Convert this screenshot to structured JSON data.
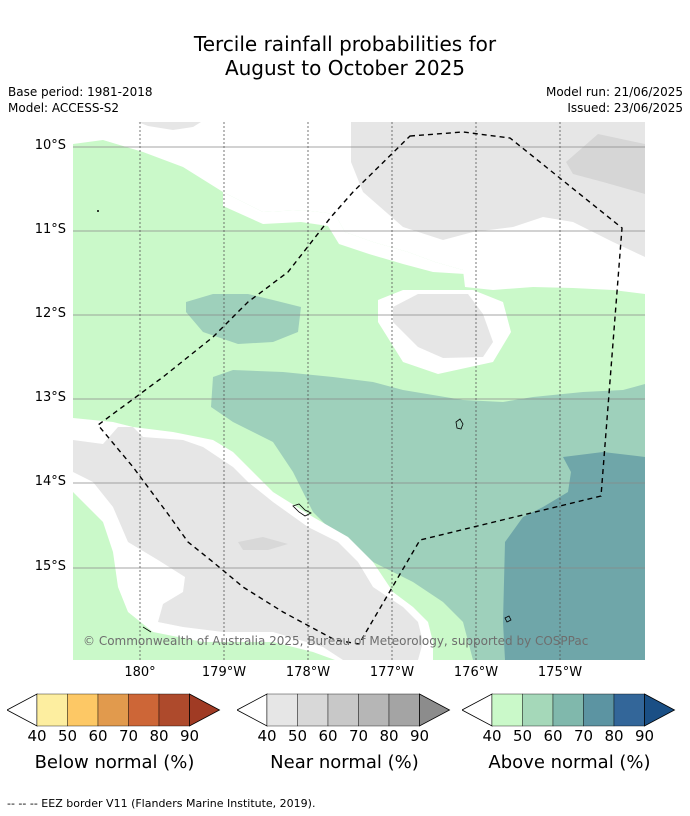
{
  "title_line1": "Tercile rainfall probabilities for",
  "title_line2": "August to October 2025",
  "base_period": "Base period: 1981-2018",
  "model": "Model: ACCESS-S2",
  "model_run": "Model run: 21/06/2025",
  "issued": "Issued: 23/06/2025",
  "lat_labels": [
    "10°S",
    "11°S",
    "12°S",
    "13°S",
    "14°S",
    "15°S"
  ],
  "lon_labels": [
    "180°",
    "179°W",
    "178°W",
    "177°W",
    "176°W",
    "175°W"
  ],
  "copyright": "© Commonwealth of Australia 2025, Bureau of Meteorology, supported by COSPPac",
  "colorbars": [
    {
      "title": "Below normal (%)",
      "ticks": [
        "40",
        "50",
        "60",
        "70",
        "80",
        "90"
      ],
      "colors": [
        "#fdeea0",
        "#fdc865",
        "#e19a4d",
        "#cd6637",
        "#ae4a2c",
        "#a03b24"
      ]
    },
    {
      "title": "Near normal (%)",
      "ticks": [
        "40",
        "50",
        "60",
        "70",
        "80",
        "90"
      ],
      "colors": [
        "#e6e6e6",
        "#d8d8d8",
        "#c8c8c8",
        "#b6b6b6",
        "#a4a4a4",
        "#8c8c8c"
      ]
    },
    {
      "title": "Above normal (%)",
      "ticks": [
        "40",
        "50",
        "60",
        "70",
        "80",
        "90"
      ],
      "colors": [
        "#caf9c9",
        "#a5d8b9",
        "#80b8ac",
        "#5c94a2",
        "#336699",
        "#1a4f85"
      ]
    }
  ],
  "footnote": "--  --  -- EEZ border V11 (Flanders Marine Institute, 2019).",
  "legend_colors": {
    "near_normal_40": "#e6e6e6",
    "above_normal_40": "#caf9c9",
    "above_normal_50": "#9ed0bb",
    "above_normal_60": "#6fa6a9"
  }
}
